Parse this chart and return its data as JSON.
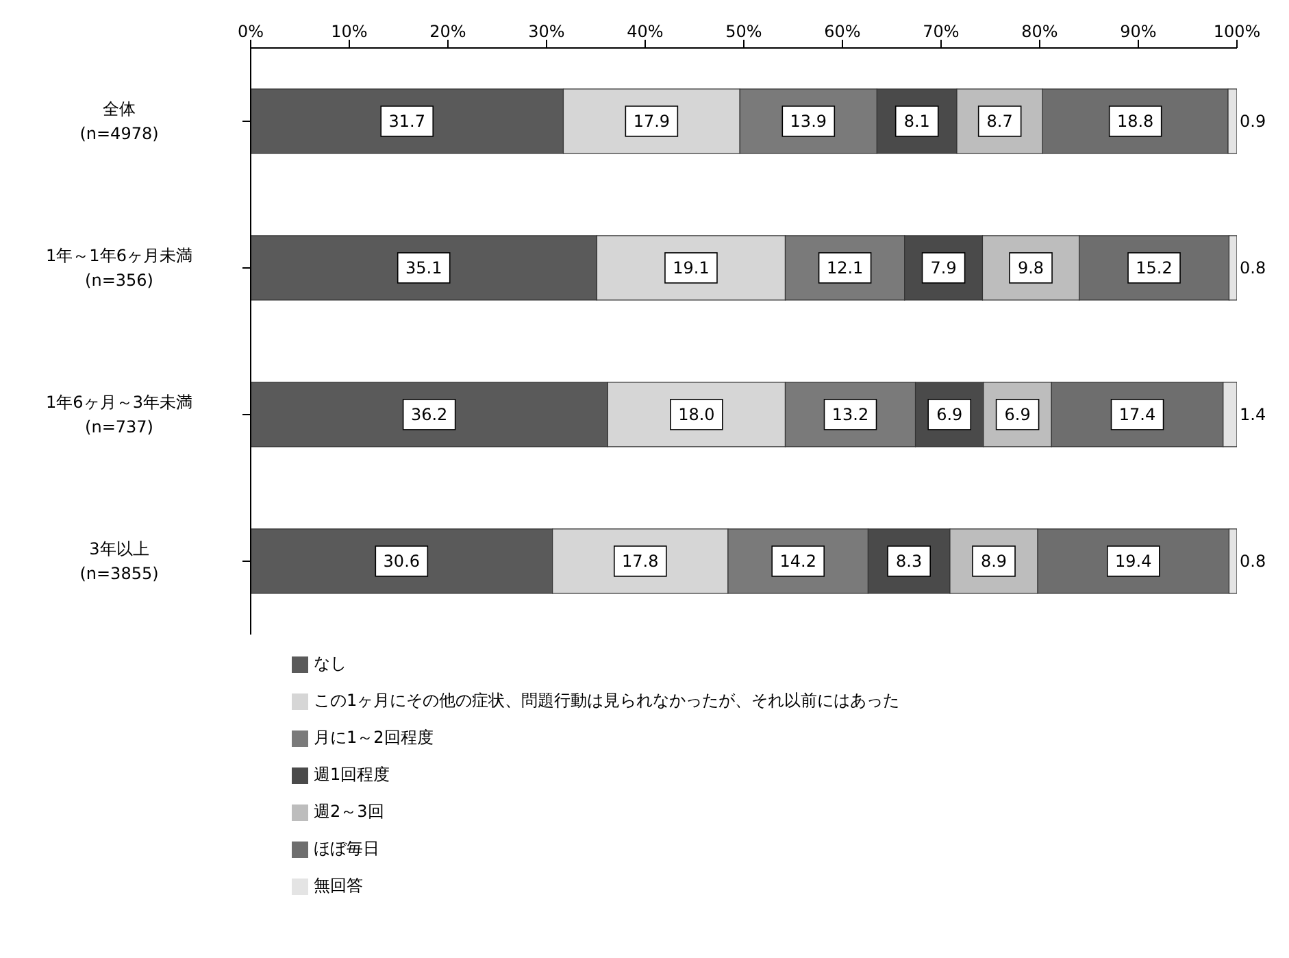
{
  "chart_data": {
    "type": "bar",
    "orientation": "horizontal",
    "stacked": true,
    "categories": [
      "全体\n(n=4978)",
      "1年～1年6ヶ月未満\n(n=356)",
      "1年6ヶ月～3年未満\n(n=737)",
      "3年以上\n(n=3855)"
    ],
    "series": [
      {
        "name": "なし",
        "color": "#5a5a5a",
        "values": [
          31.7,
          35.1,
          36.2,
          30.6
        ],
        "value_labels": [
          "31.7",
          "35.1",
          "36.2",
          "30.6"
        ]
      },
      {
        "name": "この1ヶ月にその他の症状、問題行動は見られなかったが、それ以前にはあった",
        "color": "#d6d6d6",
        "values": [
          17.9,
          19.1,
          18.0,
          17.8
        ],
        "value_labels": [
          "17.9",
          "19.1",
          "18.0",
          "17.8"
        ]
      },
      {
        "name": "月に1～2回程度",
        "color": "#7a7a7a",
        "values": [
          13.9,
          12.1,
          13.2,
          14.2
        ],
        "value_labels": [
          "13.9",
          "12.1",
          "13.2",
          "14.2"
        ]
      },
      {
        "name": "週1回程度",
        "color": "#4a4a4a",
        "values": [
          8.1,
          7.9,
          6.9,
          8.3
        ],
        "value_labels": [
          "8.1",
          "7.9",
          "6.9",
          "8.3"
        ]
      },
      {
        "name": "週2～3回",
        "color": "#bdbdbd",
        "values": [
          8.7,
          9.8,
          6.9,
          8.9
        ],
        "value_labels": [
          "8.7",
          "9.8",
          "6.9",
          "8.9"
        ]
      },
      {
        "name": "ほぼ毎日",
        "color": "#6e6e6e",
        "values": [
          18.8,
          15.2,
          17.4,
          19.4
        ],
        "value_labels": [
          "18.8",
          "15.2",
          "17.4",
          "19.4"
        ]
      },
      {
        "name": "無回答",
        "color": "#e4e4e4",
        "values": [
          0.9,
          0.8,
          1.4,
          0.8
        ],
        "value_labels": [
          "0.9",
          "0.8",
          "1.4",
          "0.8"
        ]
      }
    ],
    "xlim": [
      0,
      100
    ],
    "xticks": [
      {
        "value": 0,
        "label": "0%"
      },
      {
        "value": 10,
        "label": "10%"
      },
      {
        "value": 20,
        "label": "20%"
      },
      {
        "value": 30,
        "label": "30%"
      },
      {
        "value": 40,
        "label": "40%"
      },
      {
        "value": 50,
        "label": "50%"
      },
      {
        "value": 60,
        "label": "60%"
      },
      {
        "value": 70,
        "label": "70%"
      },
      {
        "value": 80,
        "label": "80%"
      },
      {
        "value": 90,
        "label": "90%"
      },
      {
        "value": 100,
        "label": "100%"
      }
    ],
    "grid": false,
    "legend": "bottom"
  }
}
